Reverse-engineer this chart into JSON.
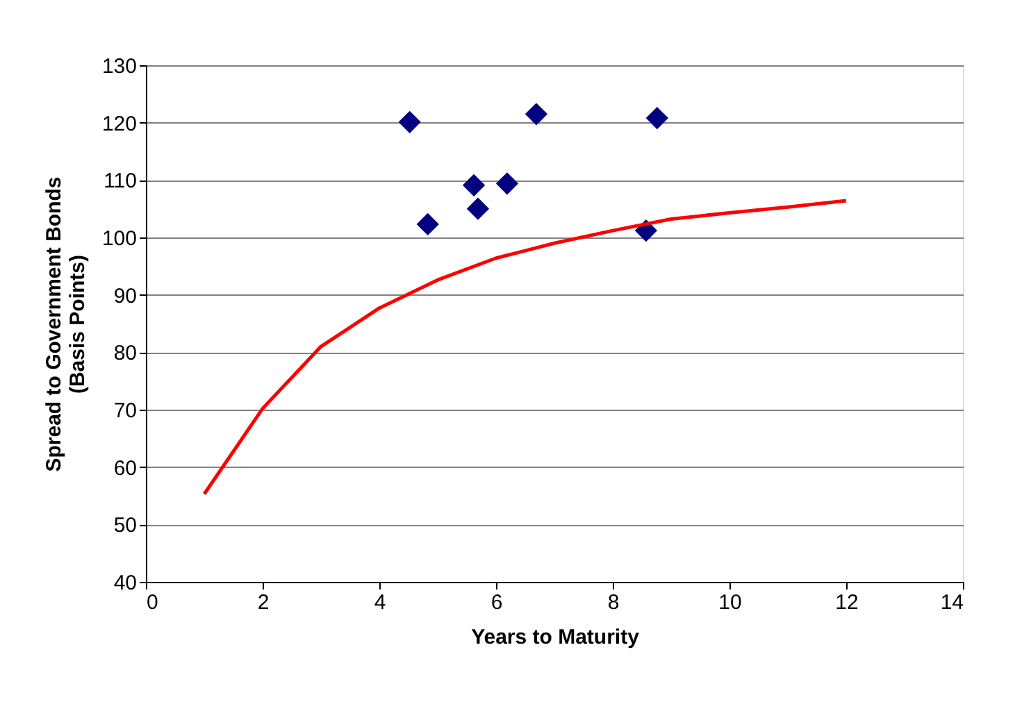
{
  "chart_data": {
    "type": "scatter",
    "xlabel": "Years to Maturity",
    "ylabel": "Spread to Government Bonds\n(Basis Points)",
    "xlim": [
      0,
      14
    ],
    "xticks": [
      0,
      2,
      4,
      6,
      8,
      10,
      12,
      14
    ],
    "ylim": [
      40,
      130
    ],
    "yticks": [
      40,
      50,
      60,
      70,
      80,
      90,
      100,
      110,
      120,
      130
    ],
    "grid": "y",
    "marker": "diamond",
    "series": [
      {
        "color": "#000080",
        "x": [
          4.52,
          4.83,
          5.62,
          5.69,
          6.19,
          6.69,
          8.57,
          8.76
        ],
        "values": [
          120.1,
          102.3,
          109.1,
          105.0,
          109.4,
          121.5,
          101.2,
          120.8
        ]
      },
      {
        "type": "line",
        "color": "#ff0000",
        "marker": "none",
        "x": [
          1,
          2,
          3,
          4,
          5,
          6,
          7,
          8,
          9,
          10,
          11,
          12
        ],
        "values": [
          55.3,
          70.2,
          81.0,
          87.7,
          92.6,
          96.4,
          99.0,
          101.2,
          103.2,
          104.3,
          105.3,
          106.4
        ]
      }
    ]
  }
}
